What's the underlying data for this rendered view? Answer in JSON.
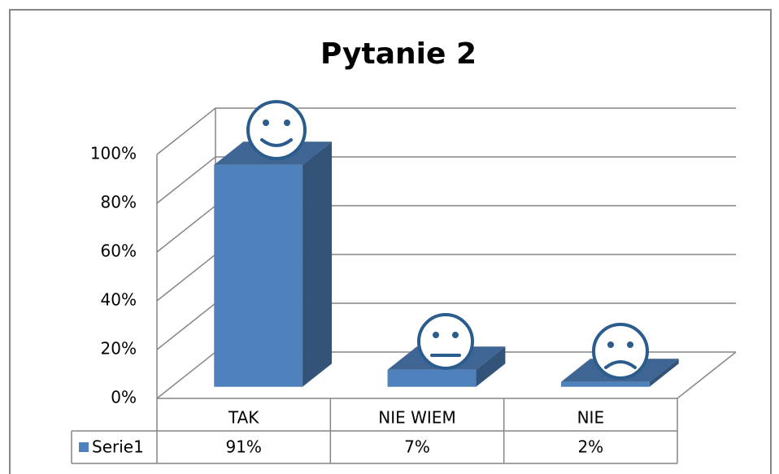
{
  "chart_data": {
    "type": "bar3d",
    "title": "Pytanie 2",
    "categories": [
      "TAK",
      "NIE WIEM",
      "NIE"
    ],
    "series": [
      {
        "name": "Serie1",
        "color": "#4f81bd",
        "values": [
          91,
          7,
          2
        ],
        "value_labels": [
          "91%",
          "7%",
          "2%"
        ]
      }
    ],
    "ylim": [
      0,
      100
    ],
    "yticks": [
      {
        "value": 0,
        "label": "0%"
      },
      {
        "value": 20,
        "label": "20%"
      },
      {
        "value": 40,
        "label": "40%"
      },
      {
        "value": 60,
        "label": "60%"
      },
      {
        "value": 80,
        "label": "80%"
      },
      {
        "value": 100,
        "label": "100%"
      }
    ],
    "grid": true
  }
}
